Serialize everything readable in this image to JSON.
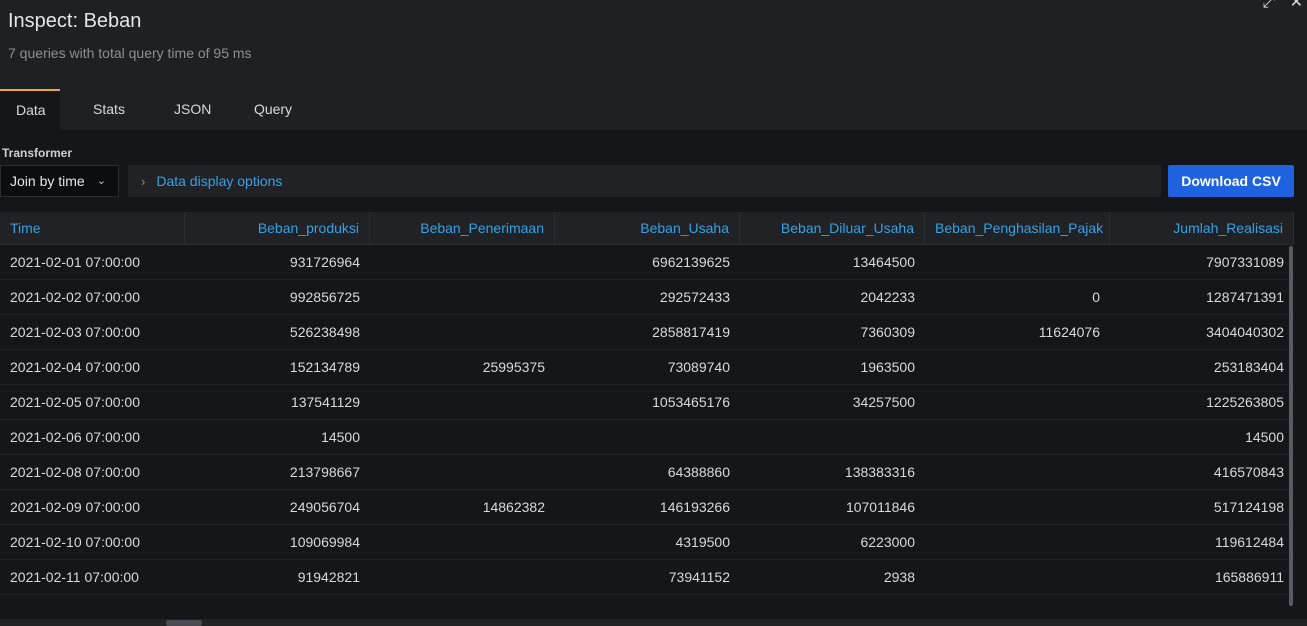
{
  "header": {
    "title": "Inspect: Beban",
    "subtitle": "7 queries with total query time of 95 ms"
  },
  "tabs": [
    {
      "label": "Data",
      "active": true
    },
    {
      "label": "Stats",
      "active": false
    },
    {
      "label": "JSON",
      "active": false
    },
    {
      "label": "Query",
      "active": false
    }
  ],
  "toolbar": {
    "transformer_label": "Transformer",
    "transformer_value": "Join by time",
    "options_label": "Data display options",
    "download_label": "Download CSV"
  },
  "table": {
    "columns": [
      "Time",
      "Beban_produksi",
      "Beban_Penerimaan",
      "Beban_Usaha",
      "Beban_Diluar_Usaha",
      "Beban_Penghasilan_Pajak",
      "Jumlah_Realisasi"
    ],
    "rows": [
      [
        "2021-02-01 07:00:00",
        "931726964",
        "",
        "6962139625",
        "13464500",
        "",
        "7907331089"
      ],
      [
        "2021-02-02 07:00:00",
        "992856725",
        "",
        "292572433",
        "2042233",
        "0",
        "1287471391"
      ],
      [
        "2021-02-03 07:00:00",
        "526238498",
        "",
        "2858817419",
        "7360309",
        "11624076",
        "3404040302"
      ],
      [
        "2021-02-04 07:00:00",
        "152134789",
        "25995375",
        "73089740",
        "1963500",
        "",
        "253183404"
      ],
      [
        "2021-02-05 07:00:00",
        "137541129",
        "",
        "1053465176",
        "34257500",
        "",
        "1225263805"
      ],
      [
        "2021-02-06 07:00:00",
        "14500",
        "",
        "",
        "",
        "",
        "14500"
      ],
      [
        "2021-02-08 07:00:00",
        "213798667",
        "",
        "64388860",
        "138383316",
        "",
        "416570843"
      ],
      [
        "2021-02-09 07:00:00",
        "249056704",
        "14862382",
        "146193266",
        "107011846",
        "",
        "517124198"
      ],
      [
        "2021-02-10 07:00:00",
        "109069984",
        "",
        "4319500",
        "6223000",
        "",
        "119612484"
      ],
      [
        "2021-02-11 07:00:00",
        "91942821",
        "",
        "73941152",
        "2938",
        "",
        "165886911"
      ]
    ]
  },
  "colors": {
    "accent": "#33a2e5",
    "tab_indicator": "#f2a533",
    "primary_button": "#1f62e0",
    "background": "#141619"
  }
}
